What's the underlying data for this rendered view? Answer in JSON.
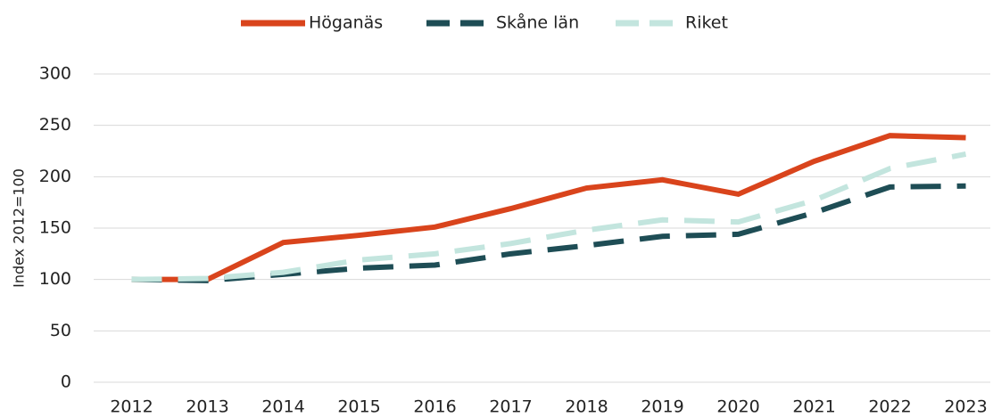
{
  "chart_data": {
    "type": "line",
    "y_label": "Index 2012=100",
    "categories": [
      "2012",
      "2013",
      "2014",
      "2015",
      "2016",
      "2017",
      "2018",
      "2019",
      "2020",
      "2021",
      "2022",
      "2023"
    ],
    "series": [
      {
        "name": "Höganäs",
        "color": "#d9441c",
        "dash": false,
        "values": [
          100,
          100,
          136,
          143,
          151,
          169,
          189,
          197,
          183,
          215,
          240,
          238
        ]
      },
      {
        "name": "Skåne län",
        "color": "#1e4d55",
        "dash": true,
        "values": [
          100,
          99,
          105,
          111,
          114,
          125,
          133,
          142,
          144,
          165,
          190,
          191
        ]
      },
      {
        "name": "Riket",
        "color": "#c3e5de",
        "dash": true,
        "values": [
          100,
          101,
          107,
          119,
          125,
          135,
          148,
          158,
          156,
          177,
          208,
          222
        ]
      }
    ],
    "ylim": [
      0,
      300
    ],
    "yticks": [
      0,
      50,
      100,
      150,
      200,
      250,
      300
    ],
    "grid": true,
    "legend": "top"
  }
}
